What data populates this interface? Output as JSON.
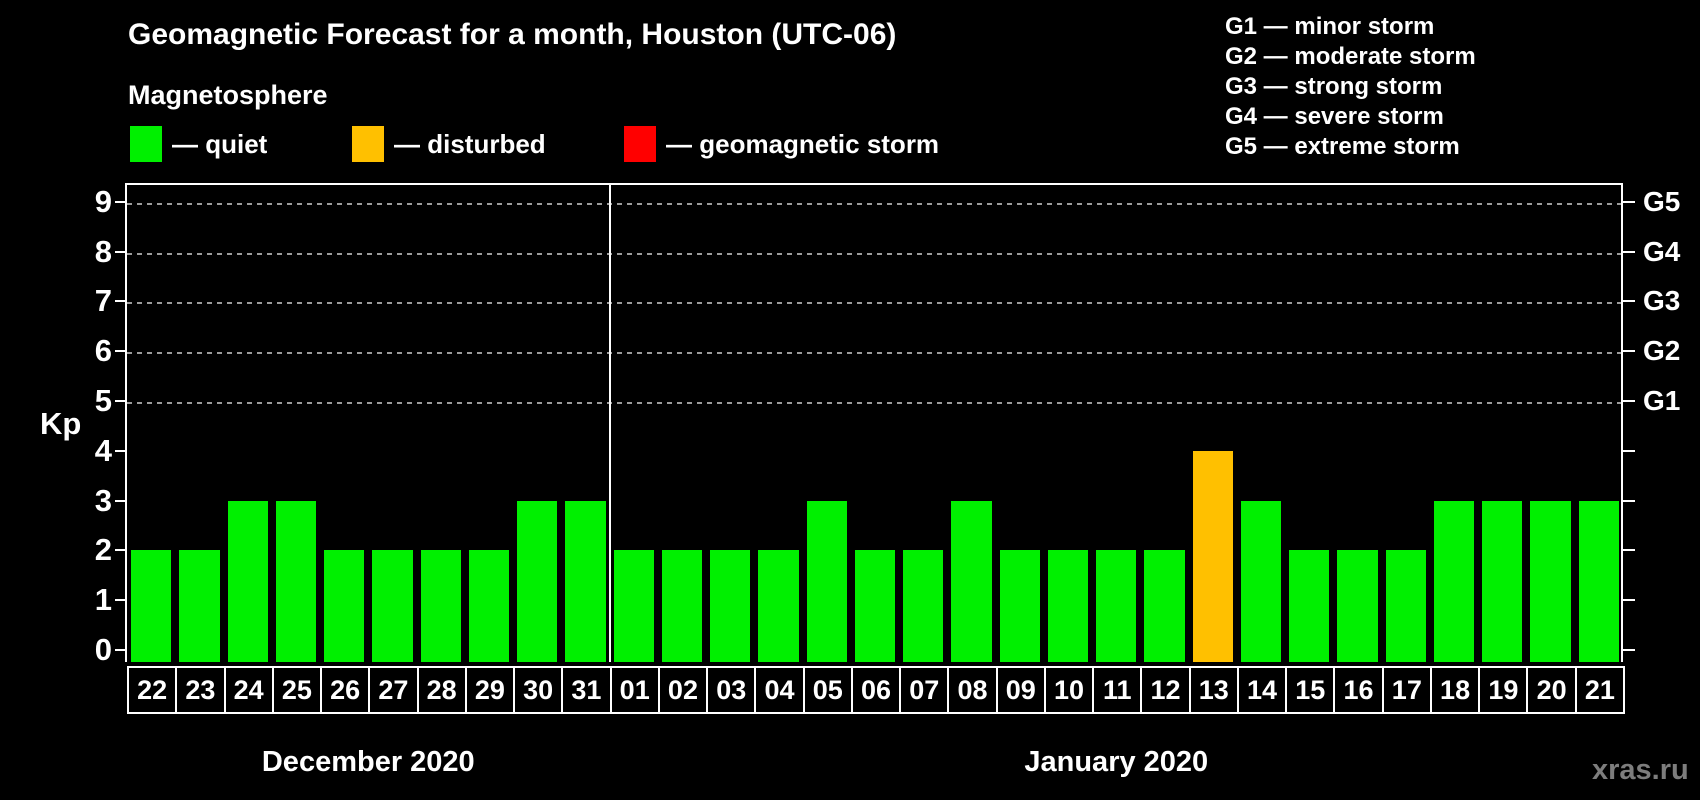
{
  "watermark": "xras.ru",
  "chart_data": {
    "type": "bar",
    "title": "Geomagnetic Forecast for a month, Houston (UTC-06)",
    "subtitle": "Magnetosphere",
    "ylabel": "Kp",
    "ylim": [
      0,
      9
    ],
    "yticks": [
      0,
      1,
      2,
      3,
      4,
      5,
      6,
      7,
      8,
      9
    ],
    "grid": "dashed horizontal lines at Kp 5-9 only",
    "legend_position": "top-left row",
    "legend": [
      {
        "status": "quiet",
        "label": "— quiet",
        "color": "#00F000"
      },
      {
        "status": "disturbed",
        "label": "— disturbed",
        "color": "#FFC000"
      },
      {
        "status": "storm",
        "label": "— geomagnetic storm",
        "color": "#FF0000"
      }
    ],
    "g_legend": [
      "G1 — minor storm",
      "G2 — moderate storm",
      "G3 — strong storm",
      "G4 — severe storm",
      "G5 — extreme storm"
    ],
    "right_axis": [
      {
        "label": "G1",
        "kp": 5
      },
      {
        "label": "G2",
        "kp": 6
      },
      {
        "label": "G3",
        "kp": 7
      },
      {
        "label": "G4",
        "kp": 8
      },
      {
        "label": "G5",
        "kp": 9
      }
    ],
    "gridlines_kp": [
      5,
      6,
      7,
      8,
      9
    ],
    "months": [
      {
        "label": "December 2020",
        "days": [
          "22",
          "23",
          "24",
          "25",
          "26",
          "27",
          "28",
          "29",
          "30",
          "31"
        ]
      },
      {
        "label": "January 2020",
        "days": [
          "01",
          "02",
          "03",
          "04",
          "05",
          "06",
          "07",
          "08",
          "09",
          "10",
          "11",
          "12",
          "13",
          "14",
          "15",
          "16",
          "17",
          "18",
          "19",
          "20",
          "21"
        ]
      }
    ],
    "bars": [
      {
        "day": "22",
        "kp": 2,
        "status": "quiet"
      },
      {
        "day": "23",
        "kp": 2,
        "status": "quiet"
      },
      {
        "day": "24",
        "kp": 3,
        "status": "quiet"
      },
      {
        "day": "25",
        "kp": 3,
        "status": "quiet"
      },
      {
        "day": "26",
        "kp": 2,
        "status": "quiet"
      },
      {
        "day": "27",
        "kp": 2,
        "status": "quiet"
      },
      {
        "day": "28",
        "kp": 2,
        "status": "quiet"
      },
      {
        "day": "29",
        "kp": 2,
        "status": "quiet"
      },
      {
        "day": "30",
        "kp": 3,
        "status": "quiet"
      },
      {
        "day": "31",
        "kp": 3,
        "status": "quiet"
      },
      {
        "day": "01",
        "kp": 2,
        "status": "quiet"
      },
      {
        "day": "02",
        "kp": 2,
        "status": "quiet"
      },
      {
        "day": "03",
        "kp": 2,
        "status": "quiet"
      },
      {
        "day": "04",
        "kp": 2,
        "status": "quiet"
      },
      {
        "day": "05",
        "kp": 3,
        "status": "quiet"
      },
      {
        "day": "06",
        "kp": 2,
        "status": "quiet"
      },
      {
        "day": "07",
        "kp": 2,
        "status": "quiet"
      },
      {
        "day": "08",
        "kp": 3,
        "status": "quiet"
      },
      {
        "day": "09",
        "kp": 2,
        "status": "quiet"
      },
      {
        "day": "10",
        "kp": 2,
        "status": "quiet"
      },
      {
        "day": "11",
        "kp": 2,
        "status": "quiet"
      },
      {
        "day": "12",
        "kp": 2,
        "status": "quiet"
      },
      {
        "day": "13",
        "kp": 4,
        "status": "disturbed"
      },
      {
        "day": "14",
        "kp": 3,
        "status": "quiet"
      },
      {
        "day": "15",
        "kp": 2,
        "status": "quiet"
      },
      {
        "day": "16",
        "kp": 2,
        "status": "quiet"
      },
      {
        "day": "17",
        "kp": 2,
        "status": "quiet"
      },
      {
        "day": "18",
        "kp": 3,
        "status": "quiet"
      },
      {
        "day": "19",
        "kp": 3,
        "status": "quiet"
      },
      {
        "day": "20",
        "kp": 3,
        "status": "quiet"
      },
      {
        "day": "21",
        "kp": 3,
        "status": "quiet"
      }
    ],
    "status_colors": {
      "quiet": "#00F000",
      "disturbed": "#FFC000",
      "storm": "#FF0000"
    }
  }
}
